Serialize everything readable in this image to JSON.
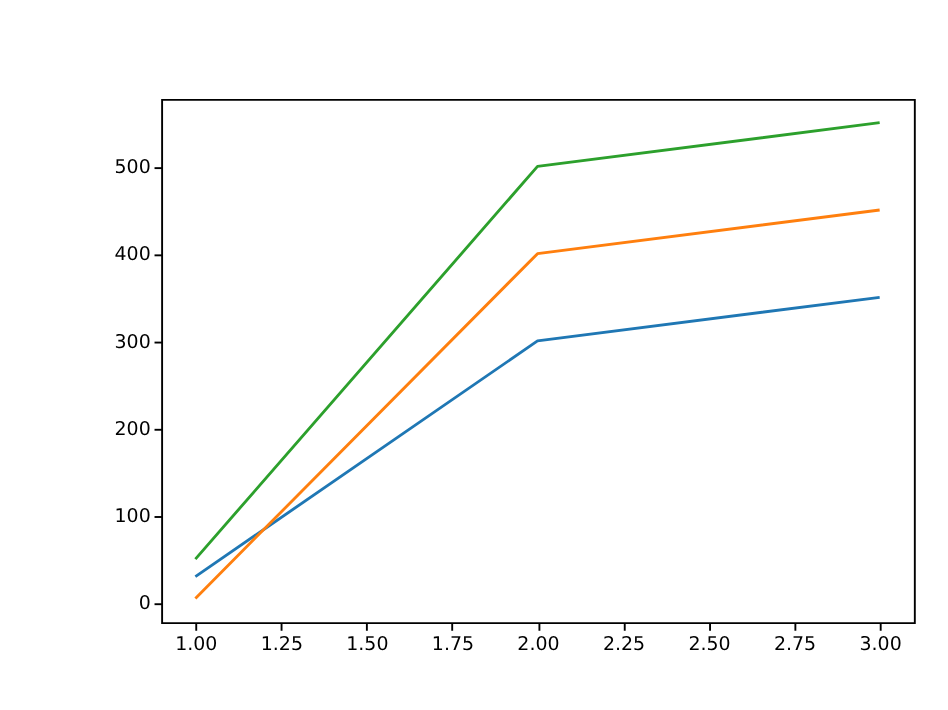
{
  "chart_data": {
    "type": "line",
    "x": [
      1,
      2,
      3
    ],
    "series": [
      {
        "color": "#1f77b4",
        "values": [
          30,
          300,
          350
        ]
      },
      {
        "color": "#ff7f0e",
        "values": [
          5,
          400,
          450
        ]
      },
      {
        "color": "#2ca02c",
        "values": [
          50,
          500,
          550
        ]
      }
    ],
    "xlim": [
      0.9,
      3.1
    ],
    "xticks": [
      {
        "value": 1,
        "label": "1.00"
      },
      1.25,
      {
        "value": 1.5,
        "label": "1.50"
      },
      1.75,
      {
        "value": 2,
        "label": "2.00"
      },
      2.25,
      {
        "value": 2.5,
        "label": "2.50"
      },
      2.75,
      {
        "value": 3,
        "label": "3.00"
      }
    ],
    "ylim": [
      -22.25,
      577.25
    ],
    "yticks": [
      0,
      100,
      200,
      300,
      400,
      500
    ],
    "grid": false,
    "legend": false,
    "line_style": "solid",
    "marker": "none"
  }
}
